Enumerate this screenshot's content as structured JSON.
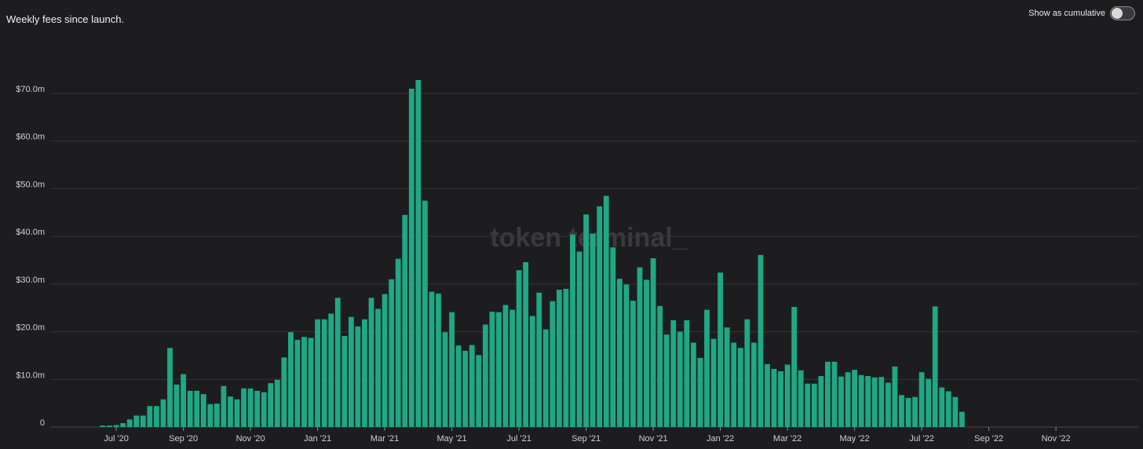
{
  "header": {
    "title": "Weekly fees since launch."
  },
  "toggle": {
    "label": "Show as cumulative",
    "state": "off"
  },
  "watermark": "token terminal_",
  "colors": {
    "background": "#1d1d20",
    "bar": "#1fa883",
    "grid": "#35353a"
  },
  "chart_data": {
    "type": "bar",
    "title": "Weekly fees since launch.",
    "xlabel": "",
    "ylabel": "",
    "ylim": [
      0,
      70000000
    ],
    "y_ticks": [
      {
        "value": 0,
        "label": "0"
      },
      {
        "value": 10000000,
        "label": "$10.0m"
      },
      {
        "value": 20000000,
        "label": "$20.0m"
      },
      {
        "value": 30000000,
        "label": "$30.0m"
      },
      {
        "value": 40000000,
        "label": "$40.0m"
      },
      {
        "value": 50000000,
        "label": "$50.0m"
      },
      {
        "value": 60000000,
        "label": "$60.0m"
      },
      {
        "value": 70000000,
        "label": "$70.0m"
      }
    ],
    "x_ticks": [
      "Jul '20",
      "Sep '20",
      "Nov '20",
      "Jan '21",
      "Mar '21",
      "May '21",
      "Jul '21",
      "Sep '21",
      "Nov '21",
      "Jan '22",
      "Mar '22",
      "May '22",
      "Jul '22",
      "Sep '22",
      "Nov '22"
    ],
    "x_tick_bar_index": [
      2,
      12,
      22,
      32,
      42,
      52,
      62,
      72,
      82,
      92,
      102,
      112,
      122,
      132,
      142
    ],
    "grid": true,
    "legend": "none",
    "series": [
      {
        "unit": "USD millions",
        "values": [
          0.3,
          0.3,
          0.4,
          0.8,
          1.6,
          2.4,
          2.4,
          4.4,
          4.4,
          5.8,
          16.6,
          8.9,
          11.1,
          7.6,
          7.6,
          6.9,
          4.8,
          4.9,
          8.6,
          6.4,
          5.8,
          8.1,
          8.1,
          7.6,
          7.3,
          9.2,
          9.9,
          14.6,
          19.9,
          18.3,
          18.9,
          18.7,
          22.6,
          22.6,
          23.8,
          27.1,
          19.1,
          23.1,
          21.1,
          22.6,
          27.1,
          24.8,
          27.9,
          31.0,
          35.3,
          44.5,
          71.0,
          72.8,
          47.5,
          28.4,
          28.0,
          19.9,
          24.1,
          17.1,
          16.0,
          17.2,
          15.1,
          21.5,
          24.2,
          24.1,
          25.6,
          24.6,
          32.9,
          34.6,
          23.3,
          28.2,
          20.5,
          26.4,
          28.8,
          29.0,
          40.4,
          36.8,
          44.6,
          40.6,
          46.3,
          48.5,
          37.7,
          31.1,
          29.9,
          26.5,
          33.5,
          30.9,
          35.4,
          25.4,
          19.4,
          22.4,
          20.0,
          22.4,
          17.7,
          14.5,
          24.6,
          18.5,
          32.4,
          20.9,
          17.7,
          16.6,
          22.6,
          17.7,
          36.1,
          13.2,
          12.2,
          11.7,
          13.1,
          25.2,
          11.9,
          9.1,
          9.1,
          10.7,
          13.7,
          13.7,
          10.6,
          11.5,
          12.0,
          10.9,
          10.7,
          10.4,
          10.5,
          9.3,
          12.7,
          6.7,
          6.1,
          6.3,
          11.5,
          10.1,
          25.3,
          8.3,
          7.5,
          6.3,
          3.2
        ]
      }
    ]
  }
}
